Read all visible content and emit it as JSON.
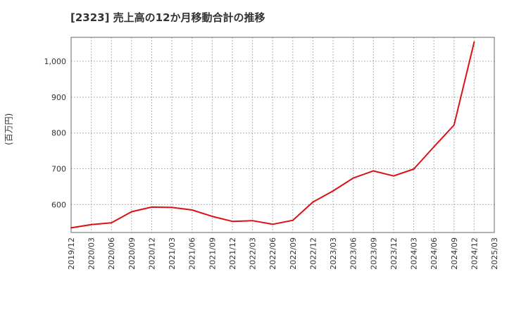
{
  "chart_data": {
    "type": "line",
    "title": "[2323]  売上高の12か月移動合計の推移",
    "xlabel": "",
    "ylabel": "(百万円)",
    "x_ticks": [
      "2019/12",
      "2020/03",
      "2020/06",
      "2020/09",
      "2020/12",
      "2021/03",
      "2021/06",
      "2021/09",
      "2021/12",
      "2022/03",
      "2022/06",
      "2022/09",
      "2022/12",
      "2023/03",
      "2023/06",
      "2023/09",
      "2023/12",
      "2024/03",
      "2024/06",
      "2024/09",
      "2024/12",
      "2025/03"
    ],
    "y_ticks": [
      600,
      700,
      800,
      900,
      1000
    ],
    "y_tick_labels": [
      "600",
      "700",
      "800",
      "900",
      "1,000"
    ],
    "ylim": [
      522,
      1067
    ],
    "grid": true,
    "series": [
      {
        "name": "売上高の12か月移動合計",
        "color": "#dd1111",
        "x": [
          "2019/12",
          "2020/03",
          "2020/06",
          "2020/09",
          "2020/12",
          "2021/03",
          "2021/06",
          "2021/09",
          "2021/12",
          "2022/03",
          "2022/06",
          "2022/09",
          "2022/12",
          "2023/03",
          "2023/06",
          "2023/09",
          "2023/12",
          "2024/03",
          "2024/06",
          "2024/09",
          "2024/12"
        ],
        "values": [
          535,
          544,
          549,
          580,
          593,
          592,
          585,
          567,
          553,
          555,
          545,
          556,
          607,
          638,
          674,
          694,
          680,
          699,
          761,
          822,
          1054
        ]
      }
    ]
  }
}
